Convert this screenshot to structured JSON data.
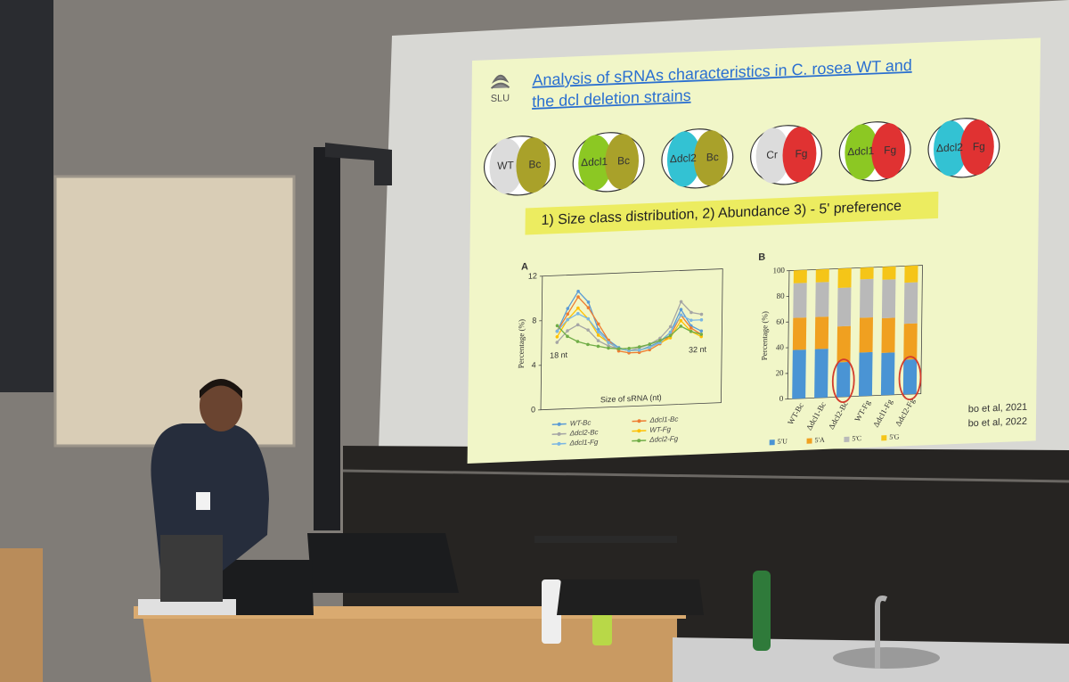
{
  "slide": {
    "logo": "SLU",
    "title_lines": [
      "Analysis of sRNAs characteristics in C. rosea WT and",
      "the dcl deletion strains"
    ],
    "venn": [
      {
        "left": "WT",
        "left_color": "#dcdcdc",
        "right": "Bc",
        "right_color": "#a9a12a"
      },
      {
        "left": "Δdcl1",
        "left_color": "#8cc823",
        "right": "Bc",
        "right_color": "#a9a12a"
      },
      {
        "left": "Δdcl2",
        "left_color": "#33c2d3",
        "right": "Bc",
        "right_color": "#a9a12a"
      },
      {
        "left": "Cr",
        "left_color": "#dcdcdc",
        "right": "Fg",
        "right_color": "#e03232"
      },
      {
        "left": "Δdcl1",
        "left_color": "#8cc823",
        "right": "Fg",
        "right_color": "#e03232"
      },
      {
        "left": "Δdcl2",
        "left_color": "#33c2d3",
        "right": "Fg",
        "right_color": "#e03232"
      }
    ],
    "highlight": "1) Size class distribution, 2) Abundance 3) - 5' preference",
    "citations": [
      "bo et al, 2021",
      "bo et al, 2022"
    ]
  },
  "chart_data": [
    {
      "type": "line",
      "panel": "A",
      "ylabel": "Percentage (%)",
      "xlabel": "Size of sRNA (nt)",
      "annotations": [
        "18 nt",
        "32 nt"
      ],
      "x": [
        18,
        19,
        20,
        21,
        22,
        23,
        24,
        25,
        26,
        27,
        28,
        29,
        30,
        31,
        32
      ],
      "xlim": [
        16.5,
        34
      ],
      "ylim": [
        0,
        12
      ],
      "yticks": [
        0,
        4,
        8,
        12
      ],
      "series": [
        {
          "name": "WT-Bc",
          "color": "#5b9bd5",
          "values": [
            7,
            9,
            10.5,
            9.5,
            7,
            6,
            5.3,
            5,
            5,
            5.3,
            5.7,
            6.5,
            8.5,
            7,
            6.5
          ]
        },
        {
          "name": "Δdcl1-Bc",
          "color": "#ed7d31",
          "values": [
            7,
            8.5,
            10,
            9,
            7.5,
            6,
            5,
            4.8,
            4.8,
            5,
            5.5,
            6.2,
            8,
            6.8,
            6.2
          ]
        },
        {
          "name": "Δdcl2-Bc",
          "color": "#a5a5a5",
          "values": [
            6,
            7,
            7.5,
            7,
            6,
            5.5,
            5.2,
            5,
            5.2,
            5.5,
            6,
            7,
            9.2,
            8.2,
            8
          ]
        },
        {
          "name": "WT-Fg",
          "color": "#ffc000",
          "values": [
            6.5,
            8,
            9,
            8,
            6.5,
            5.8,
            5.2,
            5,
            5,
            5.2,
            5.6,
            6,
            7.5,
            6.5,
            6
          ]
        },
        {
          "name": "Δdcl1-Fg",
          "color": "#7ab6e3",
          "values": [
            7,
            8,
            8.5,
            8,
            6.8,
            5.8,
            5.2,
            5,
            5,
            5.2,
            5.6,
            6.5,
            8,
            7.5,
            7.5
          ]
        },
        {
          "name": "Δdcl2-Fg",
          "color": "#70ad47",
          "values": [
            7.5,
            6.5,
            6,
            5.7,
            5.5,
            5.3,
            5.2,
            5.2,
            5.3,
            5.5,
            5.8,
            6.2,
            7,
            6.5,
            6.2
          ]
        }
      ]
    },
    {
      "type": "stacked_bar",
      "panel": "B",
      "ylabel": "Percentage (%)",
      "categories": [
        "WT-Bc",
        "Δdcl1-Bc",
        "Δdcl2-Bc",
        "WT-Fg",
        "Δdcl1-Fg",
        "Δdcl2-Fg"
      ],
      "ylim": [
        0,
        100
      ],
      "yticks": [
        0,
        20,
        40,
        60,
        80,
        100
      ],
      "series": [
        {
          "name": "5'U",
          "color": "#4a94d4",
          "values": [
            38,
            38,
            27,
            34,
            33,
            27
          ]
        },
        {
          "name": "5'A",
          "color": "#f0a020",
          "values": [
            25,
            25,
            28,
            27,
            27,
            28
          ]
        },
        {
          "name": "5'C",
          "color": "#b9b9b9",
          "values": [
            27,
            27,
            30,
            30,
            30,
            32
          ]
        },
        {
          "name": "5'G",
          "color": "#f5c518",
          "values": [
            10,
            10,
            15,
            9,
            10,
            13
          ]
        }
      ]
    }
  ]
}
